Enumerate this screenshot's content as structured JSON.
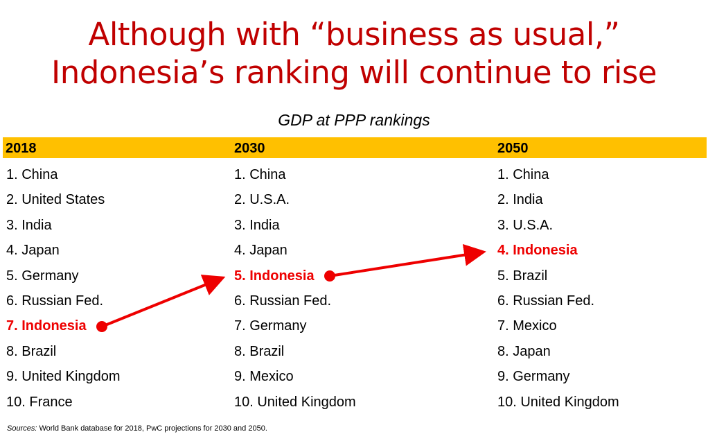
{
  "title": {
    "line1": "Although with “business as usual,”",
    "line2": "Indonesia’s ranking will continue to rise"
  },
  "subtitle": "GDP at PPP rankings",
  "columns": [
    {
      "year": "2018",
      "items": [
        "1. China",
        "2. United States",
        "3. India",
        "4. Japan",
        "5. Germany",
        "6. Russian Fed.",
        "7. Indonesia",
        "8. Brazil",
        "9. United Kingdom",
        "10. France"
      ],
      "highlight_index": 6
    },
    {
      "year": "2030",
      "items": [
        "1. China",
        "2. U.S.A.",
        "3. India",
        "4. Japan",
        "5. Indonesia",
        "6. Russian Fed.",
        "7. Germany",
        "8. Brazil",
        "9. Mexico",
        "10. United Kingdom"
      ],
      "highlight_index": 4
    },
    {
      "year": "2050",
      "items": [
        "1. China",
        "2. India",
        "3. U.S.A.",
        "4. Indonesia",
        "5. Brazil",
        "6. Russian Fed.",
        "7. Mexico",
        "8. Japan",
        "9. Germany",
        "10. United Kingdom"
      ],
      "highlight_index": 3
    }
  ],
  "sources": {
    "label": "Sources:",
    "text": " World Bank database for 2018, PwC projections for 2030 and 2050."
  },
  "colors": {
    "title": "#c00000",
    "header_bar": "#ffc000",
    "highlight": "#ee0000"
  }
}
